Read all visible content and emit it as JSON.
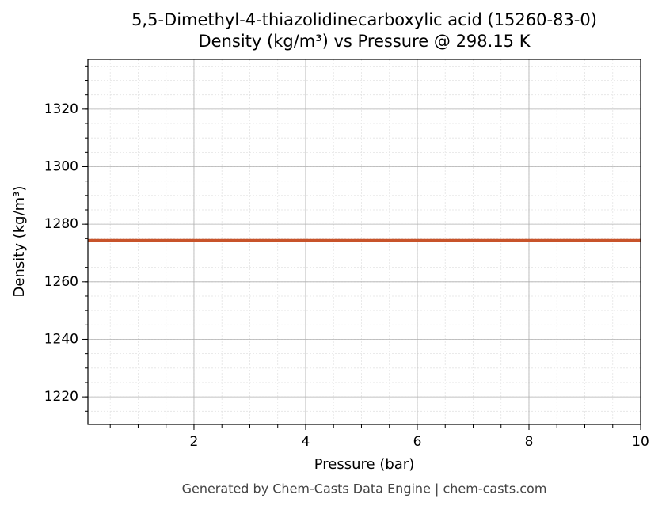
{
  "chart_data": {
    "type": "line",
    "title": "5,5-Dimethyl-4-thiazolidinecarboxylic acid (15260-83-0)",
    "subtitle": "Density (kg/m³) vs Pressure @ 298.15 K",
    "xlabel": "Pressure (bar)",
    "ylabel": "Density (kg/m³)",
    "footer": "Generated by Chem-Casts Data Engine | chem-casts.com",
    "x": [
      0.1,
      10
    ],
    "series": [
      {
        "name": "Density",
        "color": "#c8532a",
        "values": [
          1274.4,
          1274.4
        ]
      }
    ],
    "xlim": [
      0.1,
      10
    ],
    "xticks": [
      2,
      4,
      6,
      8,
      10
    ],
    "ylim": [
      1210.4,
      1337.3
    ],
    "yticks": [
      1220,
      1240,
      1260,
      1280,
      1300,
      1320
    ],
    "grid": true
  }
}
